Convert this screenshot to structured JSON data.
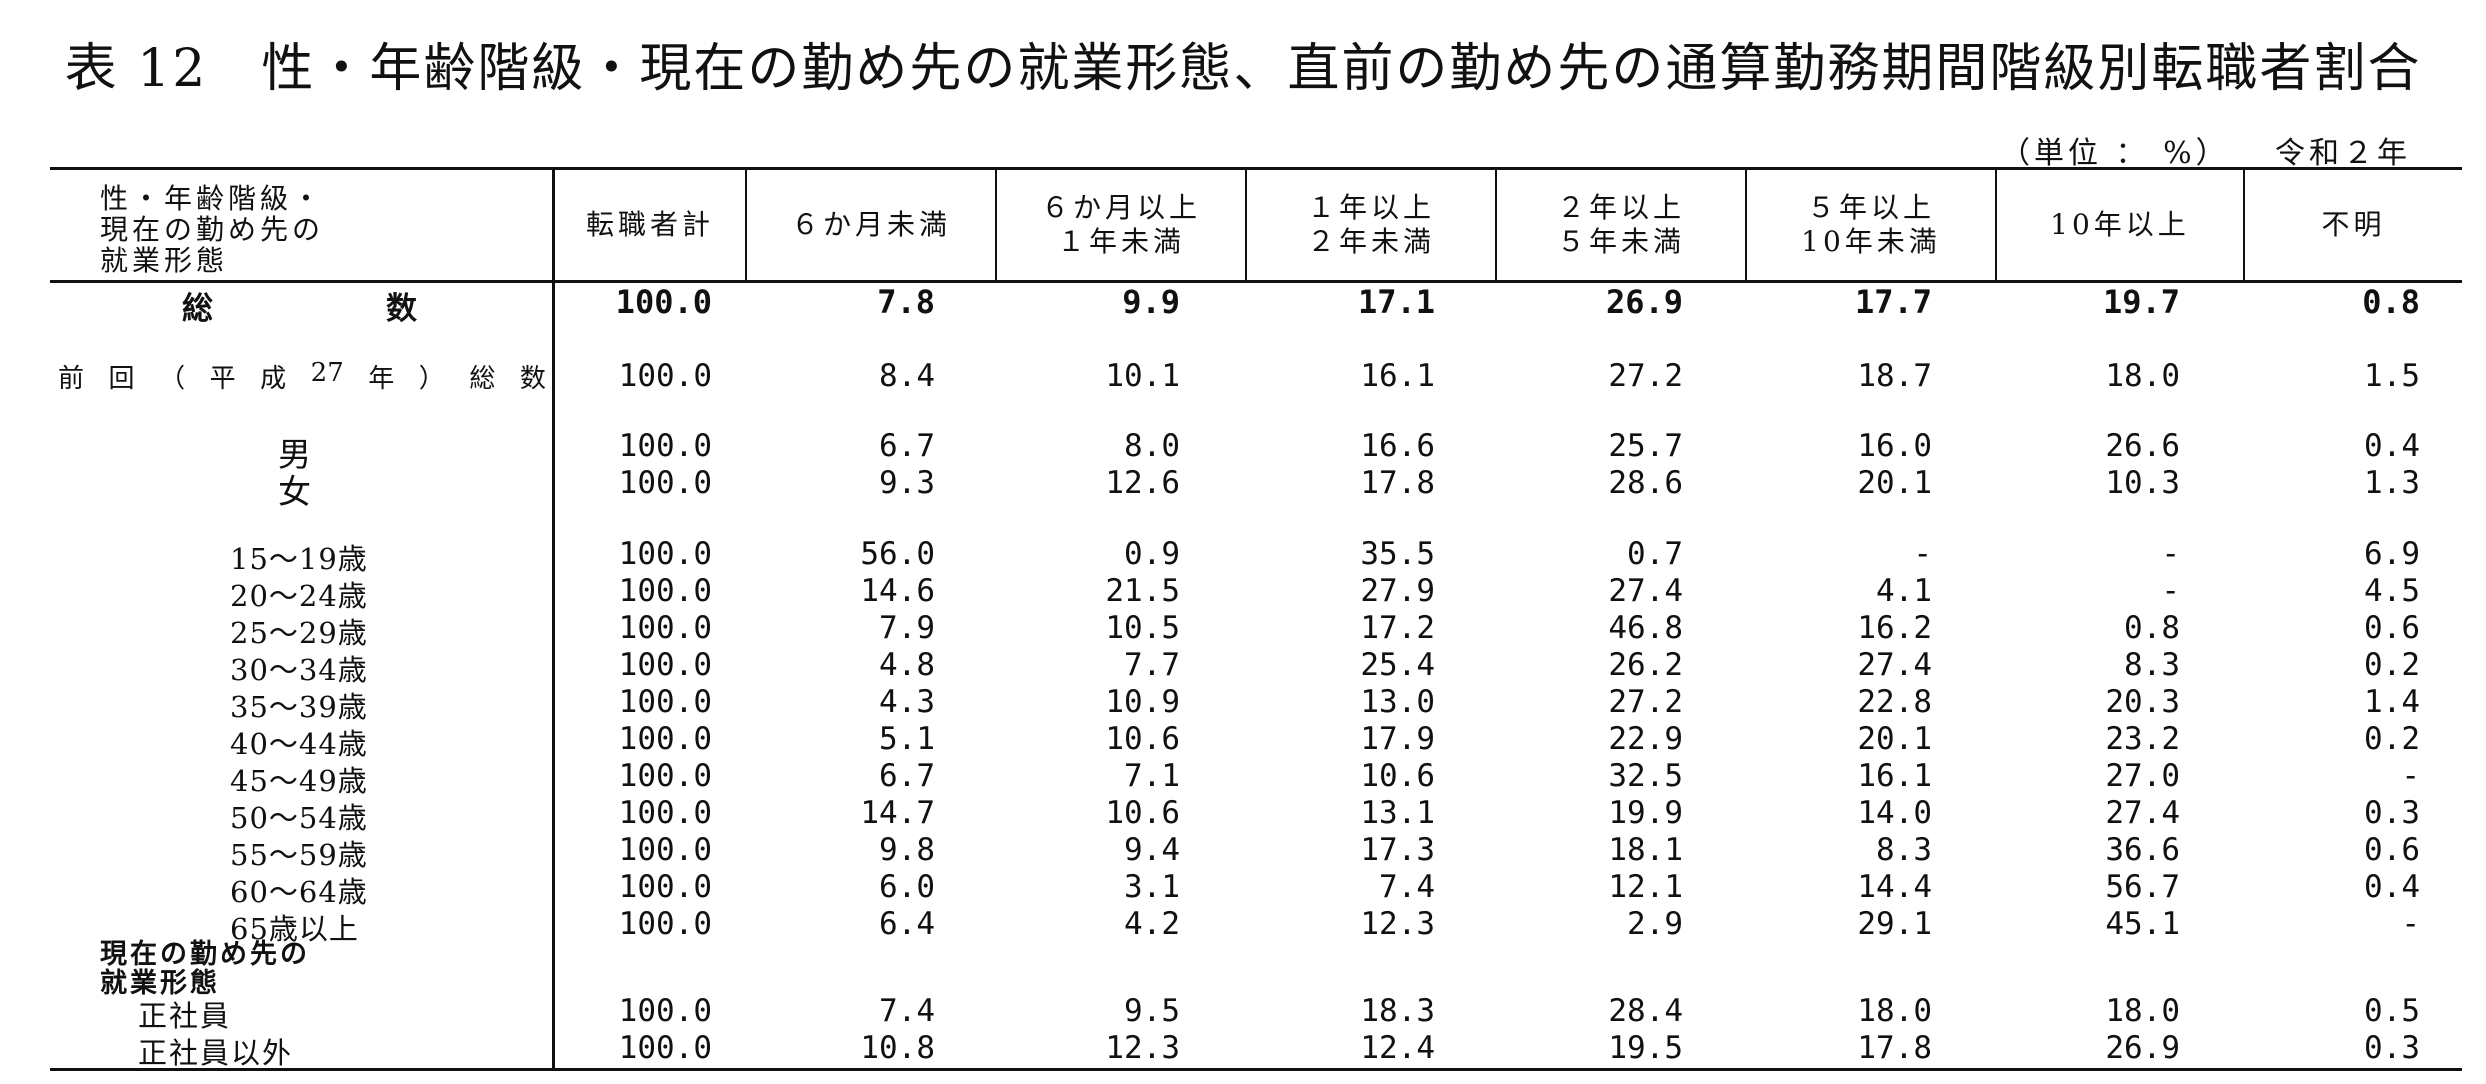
{
  "title": "表 12　性・年齢階級・現在の勤め先の就業形態、直前の勤め先の通算勤務期間階級別転職者割合",
  "unit": "（単位 ： %）",
  "era": "令和２年",
  "row_header": [
    "性・年齢階級・",
    "現在の勤め先の",
    "就業形態"
  ],
  "columns": [
    [
      "転職者計"
    ],
    [
      "６か月未満"
    ],
    [
      "６か月以上",
      "１年未満"
    ],
    [
      "１年以上",
      "２年未満"
    ],
    [
      "２年以上",
      "５年未満"
    ],
    [
      "５年以上",
      "10年未満"
    ],
    [
      "10年以上"
    ],
    [
      "不明"
    ]
  ],
  "category_label": [
    "現在の勤め先の",
    "就業形態"
  ],
  "rows": [
    {
      "label": "総　　　数",
      "values": [
        "100.0",
        "7.8",
        "9.9",
        "17.1",
        "26.9",
        "17.7",
        "19.7",
        "0.8"
      ]
    },
    {
      "label": "前回（平成27年）総数",
      "values": [
        "100.0",
        "8.4",
        "10.1",
        "16.1",
        "27.2",
        "18.7",
        "18.0",
        "1.5"
      ]
    },
    {
      "label": "男",
      "values": [
        "100.0",
        "6.7",
        "8.0",
        "16.6",
        "25.7",
        "16.0",
        "26.6",
        "0.4"
      ]
    },
    {
      "label": "女",
      "values": [
        "100.0",
        "9.3",
        "12.6",
        "17.8",
        "28.6",
        "20.1",
        "10.3",
        "1.3"
      ]
    },
    {
      "label": "15〜19歳",
      "values": [
        "100.0",
        "56.0",
        "0.9",
        "35.5",
        "0.7",
        "-",
        "-",
        "6.9"
      ]
    },
    {
      "label": "20〜24歳",
      "values": [
        "100.0",
        "14.6",
        "21.5",
        "27.9",
        "27.4",
        "4.1",
        "-",
        "4.5"
      ]
    },
    {
      "label": "25〜29歳",
      "values": [
        "100.0",
        "7.9",
        "10.5",
        "17.2",
        "46.8",
        "16.2",
        "0.8",
        "0.6"
      ]
    },
    {
      "label": "30〜34歳",
      "values": [
        "100.0",
        "4.8",
        "7.7",
        "25.4",
        "26.2",
        "27.4",
        "8.3",
        "0.2"
      ]
    },
    {
      "label": "35〜39歳",
      "values": [
        "100.0",
        "4.3",
        "10.9",
        "13.0",
        "27.2",
        "22.8",
        "20.3",
        "1.4"
      ]
    },
    {
      "label": "40〜44歳",
      "values": [
        "100.0",
        "5.1",
        "10.6",
        "17.9",
        "22.9",
        "20.1",
        "23.2",
        "0.2"
      ]
    },
    {
      "label": "45〜49歳",
      "values": [
        "100.0",
        "6.7",
        "7.1",
        "10.6",
        "32.5",
        "16.1",
        "27.0",
        "-"
      ]
    },
    {
      "label": "50〜54歳",
      "values": [
        "100.0",
        "14.7",
        "10.6",
        "13.1",
        "19.9",
        "14.0",
        "27.4",
        "0.3"
      ]
    },
    {
      "label": "55〜59歳",
      "values": [
        "100.0",
        "9.8",
        "9.4",
        "17.3",
        "18.1",
        "8.3",
        "36.6",
        "0.6"
      ]
    },
    {
      "label": "60〜64歳",
      "values": [
        "100.0",
        "6.0",
        "3.1",
        "7.4",
        "12.1",
        "14.4",
        "56.7",
        "0.4"
      ]
    },
    {
      "label": "65歳以上",
      "values": [
        "100.0",
        "6.4",
        "4.2",
        "12.3",
        "2.9",
        "29.1",
        "45.1",
        "-"
      ]
    },
    {
      "label": "正社員",
      "values": [
        "100.0",
        "7.4",
        "9.5",
        "18.3",
        "28.4",
        "18.0",
        "18.0",
        "0.5"
      ]
    },
    {
      "label": "正社員以外",
      "values": [
        "100.0",
        "10.8",
        "12.3",
        "12.4",
        "19.5",
        "17.8",
        "26.9",
        "0.3"
      ]
    }
  ]
}
